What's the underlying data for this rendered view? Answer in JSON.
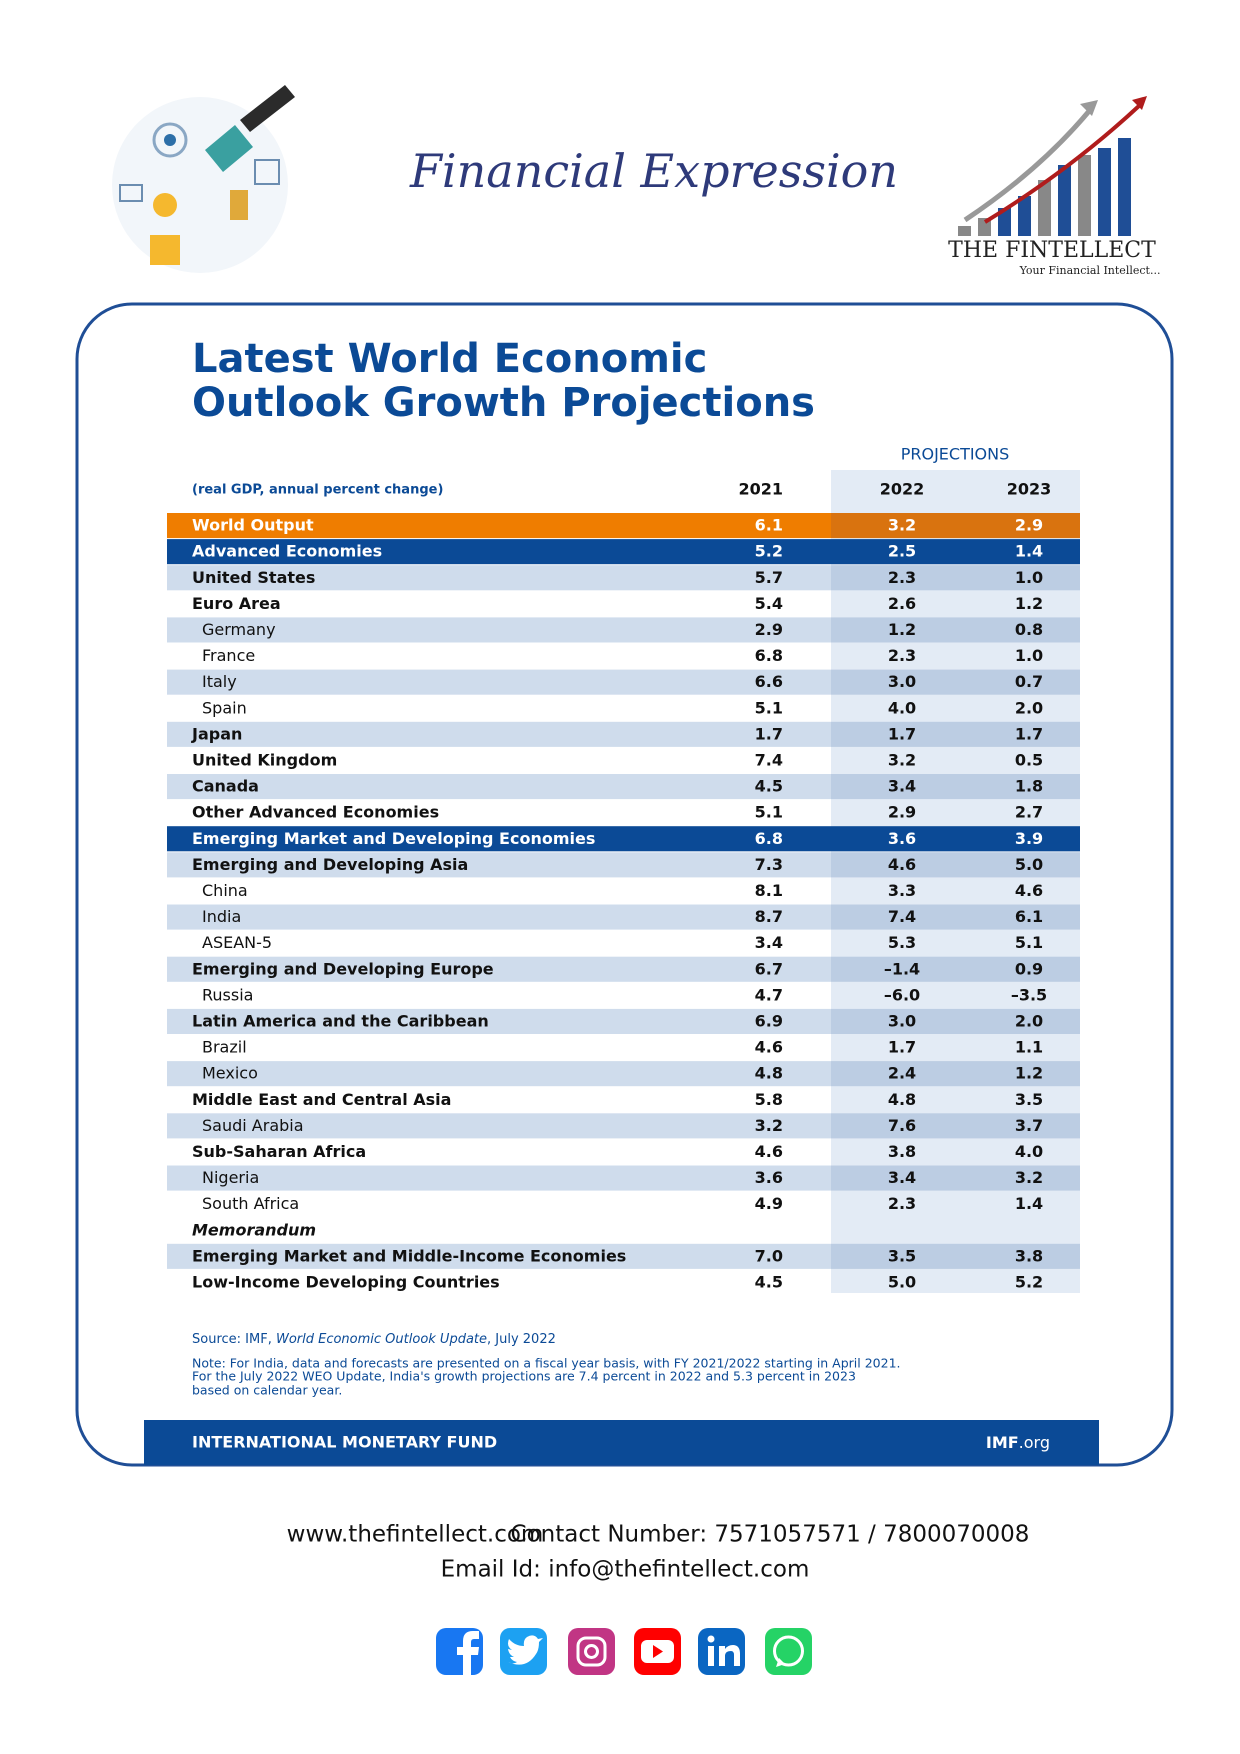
{
  "header": {
    "title": "Financial Expression",
    "brand": "THE FINTELLECT",
    "tagline": "Your Financial Intellect..."
  },
  "table": {
    "title_lines": [
      "Latest World Economic",
      "Outlook Growth Projections"
    ],
    "projections_label": "PROJECTIONS",
    "unit_note": "(real GDP, annual percent change)",
    "columns": [
      "2021",
      "2022",
      "2023"
    ],
    "rows": [
      {
        "label": "World Output",
        "values": [
          "6.1",
          "3.2",
          "2.9"
        ]
      },
      {
        "label": "Advanced Economies",
        "values": [
          "5.2",
          "2.5",
          "1.4"
        ]
      },
      {
        "label": "United States",
        "values": [
          "5.7",
          "2.3",
          "1.0"
        ]
      },
      {
        "label": "Euro Area",
        "values": [
          "5.4",
          "2.6",
          "1.2"
        ]
      },
      {
        "label": "Germany",
        "values": [
          "2.9",
          "1.2",
          "0.8"
        ]
      },
      {
        "label": "France",
        "values": [
          "6.8",
          "2.3",
          "1.0"
        ]
      },
      {
        "label": "Italy",
        "values": [
          "6.6",
          "3.0",
          "0.7"
        ]
      },
      {
        "label": "Spain",
        "values": [
          "5.1",
          "4.0",
          "2.0"
        ]
      },
      {
        "label": "Japan",
        "values": [
          "1.7",
          "1.7",
          "1.7"
        ]
      },
      {
        "label": "United Kingdom",
        "values": [
          "7.4",
          "3.2",
          "0.5"
        ]
      },
      {
        "label": "Canada",
        "values": [
          "4.5",
          "3.4",
          "1.8"
        ]
      },
      {
        "label": "Other Advanced Economies",
        "values": [
          "5.1",
          "2.9",
          "2.7"
        ]
      },
      {
        "label": "Emerging Market and Developing Economies",
        "values": [
          "6.8",
          "3.6",
          "3.9"
        ]
      },
      {
        "label": "Emerging and Developing Asia",
        "values": [
          "7.3",
          "4.6",
          "5.0"
        ]
      },
      {
        "label": "China",
        "values": [
          "8.1",
          "3.3",
          "4.6"
        ]
      },
      {
        "label": "India",
        "values": [
          "8.7",
          "7.4",
          "6.1"
        ]
      },
      {
        "label": "ASEAN-5",
        "values": [
          "3.4",
          "5.3",
          "5.1"
        ]
      },
      {
        "label": "Emerging and Developing Europe",
        "values": [
          "6.7",
          "–1.4",
          "0.9"
        ]
      },
      {
        "label": "Russia",
        "values": [
          "4.7",
          "–6.0",
          "–3.5"
        ]
      },
      {
        "label": "Latin America and the Caribbean",
        "values": [
          "6.9",
          "3.0",
          "2.0"
        ]
      },
      {
        "label": "Brazil",
        "values": [
          "4.6",
          "1.7",
          "1.1"
        ]
      },
      {
        "label": "Mexico",
        "values": [
          "4.8",
          "2.4",
          "1.2"
        ]
      },
      {
        "label": "Middle East and Central Asia",
        "values": [
          "5.8",
          "4.8",
          "3.5"
        ]
      },
      {
        "label": "Saudi Arabia",
        "values": [
          "3.2",
          "7.6",
          "3.7"
        ]
      },
      {
        "label": "Sub-Saharan Africa",
        "values": [
          "4.6",
          "3.8",
          "4.0"
        ]
      },
      {
        "label": "Nigeria",
        "values": [
          "3.6",
          "3.4",
          "3.2"
        ]
      },
      {
        "label": "South Africa",
        "values": [
          "4.9",
          "2.3",
          "1.4"
        ]
      },
      {
        "label": "Memorandum"
      },
      {
        "label": "Emerging Market and Middle-Income Economies",
        "values": [
          "7.0",
          "3.5",
          "3.8"
        ]
      },
      {
        "label": "Low-Income Developing Countries",
        "values": [
          "4.5",
          "5.0",
          "5.2"
        ]
      }
    ],
    "source": [
      "Source: IMF, ",
      "World Economic Outlook Update",
      ", July 2022"
    ],
    "note_lines": [
      "Note: For India, data and forecasts are presented on a fiscal year basis, with FY 2021/2022 starting in April 2021.",
      "For the July 2022 WEO Update, India's growth projections are 7.4 percent in 2022 and 5.3 percent in 2023",
      "based on calendar year."
    ],
    "footer_org": "INTERNATIONAL MONETARY FUND",
    "footer_site": [
      "IMF",
      ".org"
    ]
  },
  "contact": {
    "website": "www.thefintellect.com",
    "phone": "Contact Number: 7571057571 / 7800070008",
    "email": "Email Id: info@thefintellect.com"
  }
}
